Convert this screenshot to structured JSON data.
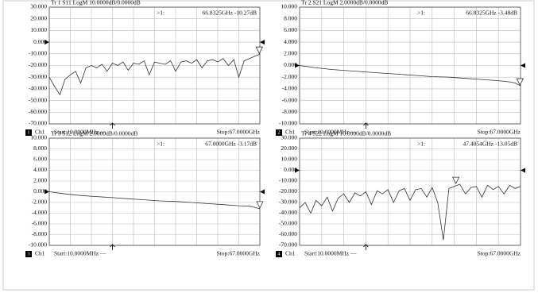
{
  "chart_data": [
    {
      "type": "line",
      "title": "Tr 1  S11 LogM 10.0000dB/0.0000dB",
      "channel": "1",
      "channel_name": "Ch1",
      "start": "Start:10.0000MHz —",
      "stop": "Stop:67.0000GHz",
      "ref": 0,
      "marker": {
        "name": ">1:",
        "x": 66.8325,
        "y": -10.27,
        "label": "66.8325GHz -10.27dB"
      },
      "xlim": [
        0.01,
        67
      ],
      "ylim": [
        -70,
        30
      ],
      "yticks": [
        {
          "value": 30,
          "label": "30.000"
        },
        {
          "value": 20,
          "label": "20.000"
        },
        {
          "value": 10,
          "label": "10.000"
        },
        {
          "value": 0,
          "label": "0.000"
        },
        {
          "value": -10,
          "label": "-10.000"
        },
        {
          "value": -20,
          "label": "-20.000"
        },
        {
          "value": -30,
          "label": "-30.000"
        },
        {
          "value": -40,
          "label": "-40.000"
        },
        {
          "value": -50,
          "label": "-50.000"
        },
        {
          "value": -60,
          "label": "-60.000"
        },
        {
          "value": -70,
          "label": "-70.000"
        }
      ],
      "series": [
        {
          "name": "S11",
          "color": "#333333",
          "x": [
            0.01,
            1.7,
            3.4,
            5,
            6.7,
            8.4,
            10,
            11.7,
            13.4,
            15.1,
            16.8,
            18.4,
            20.1,
            21.8,
            23.5,
            25.1,
            26.8,
            28.5,
            30.2,
            31.8,
            33.5,
            35.2,
            36.9,
            38.6,
            40.2,
            41.9,
            43.6,
            45.3,
            46.9,
            48.6,
            50.3,
            52,
            53.6,
            55.3,
            57,
            58.7,
            60.3,
            62,
            63.7,
            65.4,
            67
          ],
          "values": [
            -30,
            -38,
            -45,
            -32,
            -28,
            -25,
            -35,
            -22,
            -20,
            -22,
            -19,
            -25,
            -18,
            -20,
            -17,
            -24,
            -18,
            -19,
            -16,
            -28,
            -17,
            -18,
            -19,
            -16,
            -25,
            -17,
            -16,
            -18,
            -15,
            -22,
            -16,
            -15,
            -17,
            -14,
            -20,
            -15,
            -30,
            -16,
            -14,
            -12,
            -10.27
          ]
        }
      ]
    },
    {
      "type": "line",
      "title": "Tr 2  S21 LogM 2.0000dB/0.0000dB",
      "channel": "2",
      "channel_name": "Ch1",
      "start": "Start:10.0000MHz —",
      "stop": "Stop:67.0000GHz",
      "ref": 0,
      "marker": {
        "name": ">1:",
        "x": 66.8325,
        "y": -3.48,
        "label": "66.8325GHz -3.48dB"
      },
      "xlim": [
        0.01,
        67
      ],
      "ylim": [
        -10,
        10
      ],
      "yticks": [
        {
          "value": 10,
          "label": "10.000"
        },
        {
          "value": 8,
          "label": "8.000"
        },
        {
          "value": 6,
          "label": "6.000"
        },
        {
          "value": 4,
          "label": "4.000"
        },
        {
          "value": 2,
          "label": "2.000"
        },
        {
          "value": 0,
          "label": "0.000"
        },
        {
          "value": -2,
          "label": "-2.000"
        },
        {
          "value": -4,
          "label": "-4.000"
        },
        {
          "value": -6,
          "label": "-6.000"
        },
        {
          "value": -8,
          "label": "-8.000"
        },
        {
          "value": -10,
          "label": "-10.000"
        }
      ],
      "series": [
        {
          "name": "S21",
          "color": "#333333",
          "x": [
            0.01,
            5,
            10,
            15.1,
            20.1,
            25.1,
            30.2,
            35.2,
            40.2,
            45.3,
            50.3,
            55.3,
            60.3,
            63.7,
            65.4,
            67
          ],
          "values": [
            0,
            -0.4,
            -0.7,
            -0.9,
            -1.1,
            -1.3,
            -1.5,
            -1.7,
            -1.9,
            -2.0,
            -2.2,
            -2.4,
            -2.6,
            -2.8,
            -3.0,
            -3.48
          ]
        }
      ]
    },
    {
      "type": "line",
      "title": "Tr 3  S12 LogM 2.0000dB/0.0000dB",
      "channel": "3",
      "channel_name": "Ch1",
      "start": "Start:10.0000MHz —",
      "stop": "Stop:67.0000GHz",
      "ref": 0,
      "marker": {
        "name": ">1:",
        "x": 67,
        "y": -3.17,
        "label": "67.0000GHz -3.17dB"
      },
      "xlim": [
        0.01,
        67
      ],
      "ylim": [
        -10,
        10
      ],
      "yticks": [
        {
          "value": 10,
          "label": "10.000"
        },
        {
          "value": 8,
          "label": "8.000"
        },
        {
          "value": 6,
          "label": "6.000"
        },
        {
          "value": 4,
          "label": "4.000"
        },
        {
          "value": 2,
          "label": "2.000"
        },
        {
          "value": 0,
          "label": "0.000"
        },
        {
          "value": -2,
          "label": "-2.000"
        },
        {
          "value": -4,
          "label": "-4.000"
        },
        {
          "value": -6,
          "label": "-6.000"
        },
        {
          "value": -8,
          "label": "-8.000"
        },
        {
          "value": -10,
          "label": "-10.000"
        }
      ],
      "series": [
        {
          "name": "S12",
          "color": "#333333",
          "x": [
            0.01,
            5,
            10,
            15.1,
            20.1,
            25.1,
            30.2,
            35.2,
            40.2,
            45.3,
            50.3,
            55.3,
            60.3,
            63.7,
            65.4,
            67
          ],
          "values": [
            0,
            -0.4,
            -0.7,
            -0.9,
            -1.1,
            -1.3,
            -1.5,
            -1.7,
            -1.8,
            -2.0,
            -2.2,
            -2.4,
            -2.6,
            -2.7,
            -2.9,
            -3.17
          ]
        }
      ]
    },
    {
      "type": "line",
      "title": "Tr 4  S22 LogM 10.0000dB/0.0000dB",
      "channel": "4",
      "channel_name": "Ch1",
      "start": "Start:10.0000MHz —",
      "stop": "Stop:67.0000GHz",
      "ref": 0,
      "marker": {
        "name": ">1:",
        "x": 47.4054,
        "y": -13.05,
        "label": "47.4054GHz -13.05dB"
      },
      "xlim": [
        0.01,
        67
      ],
      "ylim": [
        -70,
        30
      ],
      "yticks": [
        {
          "value": 30,
          "label": "30.000"
        },
        {
          "value": 20,
          "label": "20.000"
        },
        {
          "value": 10,
          "label": "10.000"
        },
        {
          "value": 0,
          "label": "0.000"
        },
        {
          "value": -10,
          "label": "-10.000"
        },
        {
          "value": -20,
          "label": "-20.000"
        },
        {
          "value": -30,
          "label": "-30.000"
        },
        {
          "value": -40,
          "label": "-40.000"
        },
        {
          "value": -50,
          "label": "-50.000"
        },
        {
          "value": -60,
          "label": "-60.000"
        },
        {
          "value": -70,
          "label": "-70.000"
        }
      ],
      "series": [
        {
          "name": "S22",
          "color": "#333333",
          "x": [
            0.01,
            1.7,
            3.4,
            5,
            6.7,
            8.4,
            10,
            11.7,
            13.4,
            15.1,
            16.8,
            18.4,
            20.1,
            21.8,
            23.5,
            25.1,
            26.8,
            28.5,
            30.2,
            31.8,
            33.5,
            35.2,
            36.9,
            38.6,
            40.2,
            41.9,
            43.6,
            45.3,
            46.9,
            48.6,
            50.3,
            52,
            53.6,
            55.3,
            57,
            58.7,
            60.3,
            62,
            63.7,
            65.4,
            67
          ],
          "values": [
            -35,
            -30,
            -40,
            -28,
            -33,
            -25,
            -38,
            -26,
            -22,
            -30,
            -21,
            -24,
            -20,
            -32,
            -19,
            -22,
            -18,
            -30,
            -19,
            -17,
            -28,
            -18,
            -17,
            -25,
            -16,
            -30,
            -65,
            -17,
            -15,
            -13.05,
            -22,
            -16,
            -15,
            -25,
            -14,
            -18,
            -15,
            -22,
            -14,
            -17,
            -15
          ]
        }
      ]
    }
  ]
}
